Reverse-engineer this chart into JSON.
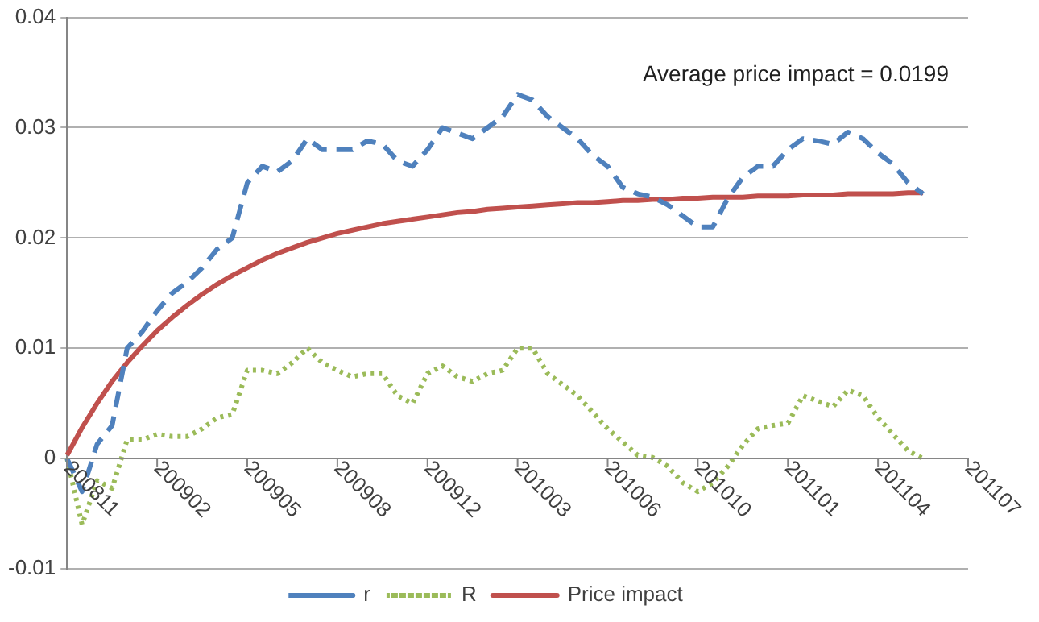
{
  "chart_data": {
    "type": "line",
    "annotations": [
      "Average price impact = 0.0199"
    ],
    "categories": [
      "200811",
      null,
      null,
      null,
      null,
      null,
      "200902",
      null,
      null,
      null,
      null,
      null,
      "200905",
      null,
      null,
      null,
      null,
      null,
      "200908",
      null,
      null,
      null,
      null,
      null,
      "200912",
      null,
      null,
      null,
      null,
      null,
      "201003",
      null,
      null,
      null,
      null,
      null,
      "201006",
      null,
      null,
      null,
      null,
      null,
      "201010",
      null,
      null,
      null,
      null,
      null,
      "201101",
      null,
      null,
      null,
      null,
      null,
      "201104",
      null,
      null,
      null,
      null,
      null,
      "201107"
    ],
    "series": [
      {
        "name": "r",
        "color": "#4f81bd",
        "line_style": "dashed",
        "values": [
          0,
          -0.003,
          0.0013,
          0.003,
          0.01,
          0.0115,
          0.0134,
          0.015,
          0.016,
          0.0173,
          0.019,
          0.02,
          0.025,
          0.0265,
          0.026,
          0.027,
          0.029,
          0.028,
          0.028,
          0.028,
          0.0288,
          0.0285,
          0.027,
          0.0265,
          0.028,
          0.03,
          0.0295,
          0.029,
          0.03,
          0.031,
          0.033,
          0.0325,
          0.031,
          0.03,
          0.029,
          0.0275,
          0.0265,
          0.0246,
          0.024,
          0.0237,
          0.023,
          0.022,
          0.021,
          0.021,
          0.0236,
          0.0255,
          0.0265,
          0.0265,
          0.028,
          0.029,
          0.0288,
          0.0285,
          0.0296,
          0.029,
          0.0277,
          0.0267,
          0.025,
          0.024,
          null,
          null,
          null
        ]
      },
      {
        "name": "R",
        "color": "#9bbb59",
        "line_style": "dotted",
        "values": [
          0,
          -0.006,
          -0.002,
          -0.0027,
          0.0017,
          0.0017,
          0.0022,
          0.002,
          0.002,
          0.0027,
          0.0037,
          0.004,
          0.008,
          0.008,
          0.0077,
          0.0087,
          0.01,
          0.0087,
          0.008,
          0.0074,
          0.0077,
          0.0077,
          0.0057,
          0.005,
          0.0077,
          0.0084,
          0.0074,
          0.007,
          0.0077,
          0.008,
          0.01,
          0.01,
          0.0077,
          0.0067,
          0.0057,
          0.0042,
          0.0027,
          0.0015,
          0.0003,
          0.0001,
          -0.0007,
          -0.0022,
          -0.003,
          -0.0022,
          -0.0007,
          0.0012,
          0.0027,
          0.003,
          0.0032,
          0.0057,
          0.0052,
          0.0047,
          0.0062,
          0.0057,
          0.0037,
          0.0022,
          0.0007,
          0,
          null,
          null,
          null
        ]
      },
      {
        "name": "Price impact",
        "color": "#c0504d",
        "line_style": "solid",
        "values": [
          0.0003,
          0.0028,
          0.005,
          0.007,
          0.0087,
          0.0102,
          0.0116,
          0.0128,
          0.0139,
          0.0149,
          0.0158,
          0.0166,
          0.0173,
          0.018,
          0.0186,
          0.0191,
          0.0196,
          0.02,
          0.0204,
          0.0207,
          0.021,
          0.0213,
          0.0215,
          0.0217,
          0.0219,
          0.0221,
          0.0223,
          0.0224,
          0.0226,
          0.0227,
          0.0228,
          0.0229,
          0.023,
          0.0231,
          0.0232,
          0.0232,
          0.0233,
          0.0234,
          0.0234,
          0.0235,
          0.0235,
          0.0236,
          0.0236,
          0.0237,
          0.0237,
          0.0237,
          0.0238,
          0.0238,
          0.0238,
          0.0239,
          0.0239,
          0.0239,
          0.024,
          0.024,
          0.024,
          0.024,
          0.0241,
          0.0241,
          null,
          null,
          null
        ]
      }
    ],
    "ylim": [
      -0.01,
      0.04
    ],
    "yticks": [
      -0.01,
      0,
      0.01,
      0.02,
      0.03,
      0.04
    ],
    "grid": "y",
    "legend": "bottom",
    "marker": "none"
  }
}
